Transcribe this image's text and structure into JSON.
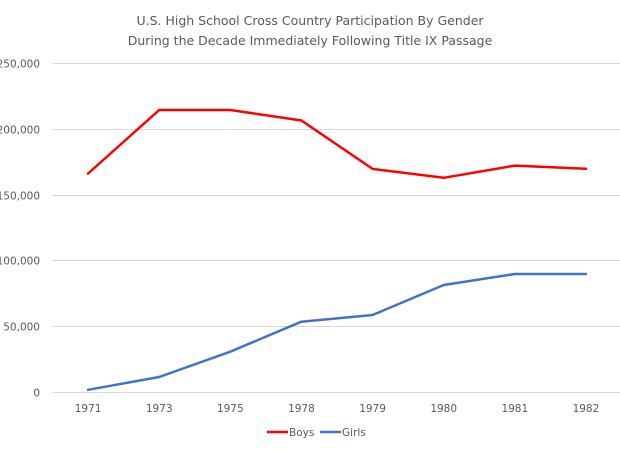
{
  "chart_data": {
    "type": "line",
    "title": "U.S. High School Cross Country Participation By Gender",
    "subtitle": "During the Decade Immediately Following Title IX Passage",
    "xlabel": "",
    "ylabel": "",
    "categories": [
      "1971",
      "1973",
      "1975",
      "1978",
      "1979",
      "1980",
      "1981",
      "1982"
    ],
    "ylim": [
      0,
      250000
    ],
    "yticks": [
      0,
      50000,
      100000,
      150000,
      200000,
      250000
    ],
    "ytick_labels": [
      "0",
      "50,000",
      "100,000",
      "150,000",
      "200,000",
      "250,000"
    ],
    "grid": true,
    "legend_position": "bottom",
    "series": [
      {
        "name": "Boys",
        "color": "#FF0000",
        "values": [
          166000,
          214300,
          214300,
          206300,
          169500,
          162800,
          172000,
          169700
        ]
      },
      {
        "name": "Girls",
        "color": "#4472C4",
        "values": [
          1700,
          11400,
          30600,
          53400,
          58500,
          81300,
          89700,
          89700
        ]
      }
    ]
  }
}
